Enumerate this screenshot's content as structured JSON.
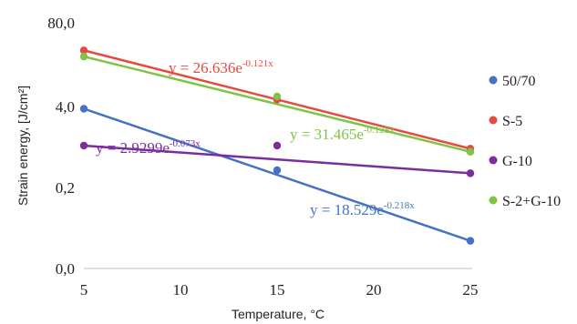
{
  "chart_data": {
    "type": "scatter",
    "xlabel": "Temperature, °C",
    "ylabel": "Strain energy, [J/cm²]",
    "x_ticks": [
      "5",
      "10",
      "15",
      "20",
      "25"
    ],
    "y_ticks": [
      "0,0",
      "0,2",
      "4,0",
      "80,0"
    ],
    "xlim": [
      5,
      25
    ],
    "grid": false,
    "legend_position": "right",
    "series": [
      {
        "name": "50/70",
        "color": "#4472c4",
        "x": [
          5,
          15,
          25
        ],
        "y": [
          2.6,
          1.6,
          0.45
        ],
        "trendline_label": {
          "base": "y = 18.529e",
          "exp": "-0.218x"
        }
      },
      {
        "name": "S-5",
        "color": "#e8493f",
        "x": [
          5,
          15,
          25
        ],
        "y": [
          3.55,
          2.75,
          1.95
        ],
        "trendline_label": {
          "base": "y = 26.636e",
          "exp": "-0.121x"
        }
      },
      {
        "name": "G-10",
        "color": "#7b2c9e",
        "x": [
          5,
          15,
          25
        ],
        "y": [
          2.0,
          2.0,
          1.55
        ],
        "trendline_label": {
          "base": "y = 2.9299e",
          "exp": "-0.073x"
        }
      },
      {
        "name": "S-2+G-10",
        "color": "#7fc444",
        "x": [
          5,
          15,
          25
        ],
        "y": [
          3.45,
          2.8,
          1.9
        ],
        "trendline_label": {
          "base": "y = 31.465e",
          "exp": "-0.128x"
        }
      }
    ]
  }
}
